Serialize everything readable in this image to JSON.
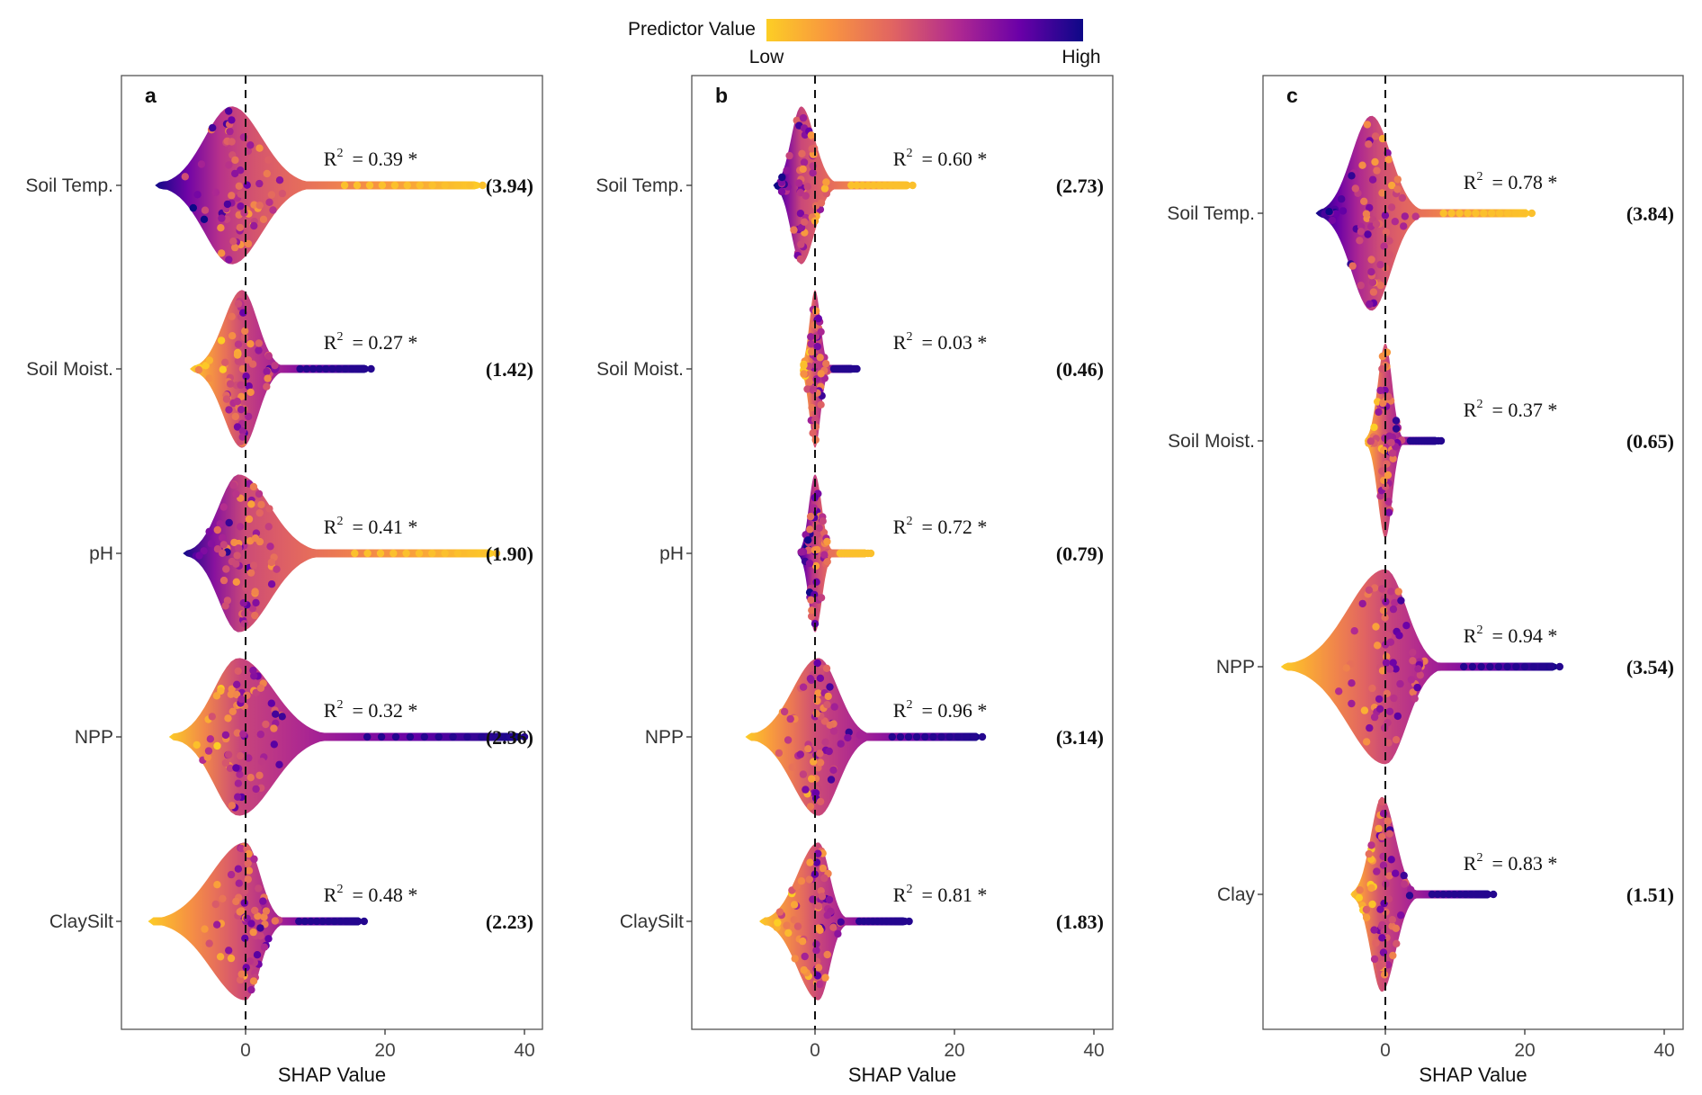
{
  "legend": {
    "title": "Predictor Value",
    "low_label": "Low",
    "high_label": "High",
    "colors": [
      "#fcce25",
      "#f89540",
      "#e16462",
      "#b12a90",
      "#6a00a8",
      "#0d0887"
    ]
  },
  "chart_data": [
    {
      "type": "violin-beeswarm",
      "panel_label": "a",
      "xlabel": "SHAP Value",
      "xticks": [
        0,
        20,
        40
      ],
      "xlim": [
        -17,
        42
      ],
      "reference_line": 0,
      "features": [
        {
          "name": "Soil Temp.",
          "r2_label": "= 0.39 *",
          "importance": "(3.94)",
          "min": -13,
          "max": 34,
          "mode": -2,
          "color_dir": "high_left"
        },
        {
          "name": "Soil Moist.",
          "r2_label": "= 0.27 *",
          "importance": "(1.42)",
          "min": -8,
          "max": 18,
          "mode": -0.5,
          "color_dir": "high_right"
        },
        {
          "name": "pH",
          "r2_label": "= 0.41 *",
          "importance": "(1.90)",
          "min": -9,
          "max": 36,
          "mode": -1,
          "color_dir": "high_left"
        },
        {
          "name": "NPP",
          "r2_label": "= 0.32 *",
          "importance": "(2.36)",
          "min": -11,
          "max": 40,
          "mode": -1,
          "color_dir": "high_right"
        },
        {
          "name": "ClaySilt",
          "r2_label": "= 0.48 *",
          "importance": "(2.23)",
          "min": -14,
          "max": 17,
          "mode": 0,
          "color_dir": "high_right"
        }
      ]
    },
    {
      "type": "violin-beeswarm",
      "panel_label": "b",
      "xlabel": "SHAP Value",
      "xticks": [
        0,
        20,
        40
      ],
      "xlim": [
        -17,
        42
      ],
      "reference_line": 0,
      "features": [
        {
          "name": "Soil Temp.",
          "r2_label": "= 0.60 *",
          "importance": "(2.73)",
          "min": -6,
          "max": 14,
          "mode": -2,
          "color_dir": "high_left"
        },
        {
          "name": "Soil Moist.",
          "r2_label": "= 0.03 *",
          "importance": "(0.46)",
          "min": -2,
          "max": 6,
          "mode": 0,
          "color_dir": "high_right"
        },
        {
          "name": "pH",
          "r2_label": "= 0.72 *",
          "importance": "(0.79)",
          "min": -2.5,
          "max": 8,
          "mode": 0,
          "color_dir": "high_left"
        },
        {
          "name": "NPP",
          "r2_label": "= 0.96 *",
          "importance": "(3.14)",
          "min": -10,
          "max": 24,
          "mode": 0.5,
          "color_dir": "high_right"
        },
        {
          "name": "ClaySilt",
          "r2_label": "= 0.81 *",
          "importance": "(1.83)",
          "min": -8,
          "max": 13.5,
          "mode": 0.5,
          "color_dir": "high_right"
        }
      ]
    },
    {
      "type": "violin-beeswarm",
      "panel_label": "c",
      "xlabel": "SHAP Value",
      "xticks": [
        0,
        20,
        40
      ],
      "xlim": [
        -17,
        42
      ],
      "reference_line": 0,
      "features": [
        {
          "name": "Soil Temp.",
          "r2_label": "= 0.78 *",
          "importance": "(3.84)",
          "min": -10,
          "max": 21,
          "mode": -2,
          "color_dir": "high_left"
        },
        {
          "name": "Soil Moist.",
          "r2_label": "= 0.37 *",
          "importance": "(0.65)",
          "min": -3,
          "max": 8,
          "mode": 0,
          "color_dir": "high_right"
        },
        {
          "name": "NPP",
          "r2_label": "= 0.94 *",
          "importance": "(3.54)",
          "min": -15,
          "max": 25,
          "mode": 0,
          "color_dir": "high_right"
        },
        {
          "name": "Clay",
          "r2_label": "= 0.83 *",
          "importance": "(1.51)",
          "min": -5,
          "max": 15.5,
          "mode": -0.5,
          "color_dir": "high_right"
        }
      ]
    }
  ]
}
